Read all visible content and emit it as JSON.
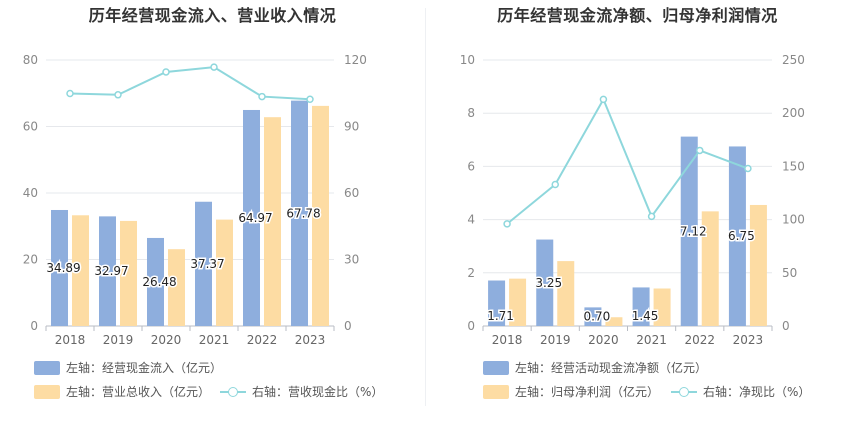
{
  "chart_data": [
    {
      "type": "bar",
      "title": "历年经营现金流入、营业收入情况",
      "categories": [
        "2018",
        "2019",
        "2020",
        "2021",
        "2022",
        "2023"
      ],
      "y_left_ticks": [
        "0",
        "20",
        "40",
        "60",
        "80"
      ],
      "y_right_ticks": [
        "0",
        "30",
        "60",
        "90",
        "120"
      ],
      "ylim_left": [
        0,
        80
      ],
      "ylim_right": [
        0,
        120
      ],
      "series": [
        {
          "name": "左轴：经营现金流入（亿元）",
          "axis": "left",
          "kind": "bar",
          "color": "#8eaedd",
          "values": [
            34.89,
            32.97,
            26.48,
            37.37,
            64.97,
            67.78
          ],
          "labels": [
            "34.89",
            "32.97",
            "26.48",
            "37.37",
            "64.97",
            "67.78"
          ]
        },
        {
          "name": "左轴：营业总收入（亿元）",
          "axis": "left",
          "kind": "bar",
          "color": "#fddca3",
          "values": [
            33.3,
            31.6,
            23.1,
            32.0,
            62.8,
            66.2
          ]
        },
        {
          "name": "右轴：营收现金比（%）",
          "axis": "right",
          "kind": "line",
          "color": "#8ed7dc",
          "values": [
            104.9,
            104.3,
            114.6,
            116.8,
            103.5,
            102.3
          ]
        }
      ],
      "grid": true,
      "legend_position": "bottom"
    },
    {
      "type": "bar",
      "title": "历年经营现金流净额、归母净利润情况",
      "categories": [
        "2018",
        "2019",
        "2020",
        "2021",
        "2022",
        "2023"
      ],
      "y_left_ticks": [
        "0",
        "2",
        "4",
        "6",
        "8",
        "10"
      ],
      "y_right_ticks": [
        "0",
        "50",
        "100",
        "150",
        "200",
        "250"
      ],
      "ylim_left": [
        0,
        10
      ],
      "ylim_right": [
        0,
        250
      ],
      "series": [
        {
          "name": "左轴：经营活动现金流净额（亿元）",
          "axis": "left",
          "kind": "bar",
          "color": "#8eaedd",
          "values": [
            1.71,
            3.25,
            0.7,
            1.45,
            7.12,
            6.75
          ],
          "labels": [
            "1.71",
            "3.25",
            "0.70",
            "1.45",
            "7.12",
            "6.75"
          ]
        },
        {
          "name": "左轴：归母净利润（亿元）",
          "axis": "left",
          "kind": "bar",
          "color": "#fddca3",
          "values": [
            1.78,
            2.44,
            0.33,
            1.41,
            4.31,
            4.55
          ]
        },
        {
          "name": "右轴：净现比（%）",
          "axis": "right",
          "kind": "line",
          "color": "#8ed7dc",
          "values": [
            96,
            133,
            213,
            103,
            165,
            148
          ]
        }
      ],
      "grid": true,
      "legend_position": "bottom"
    }
  ]
}
